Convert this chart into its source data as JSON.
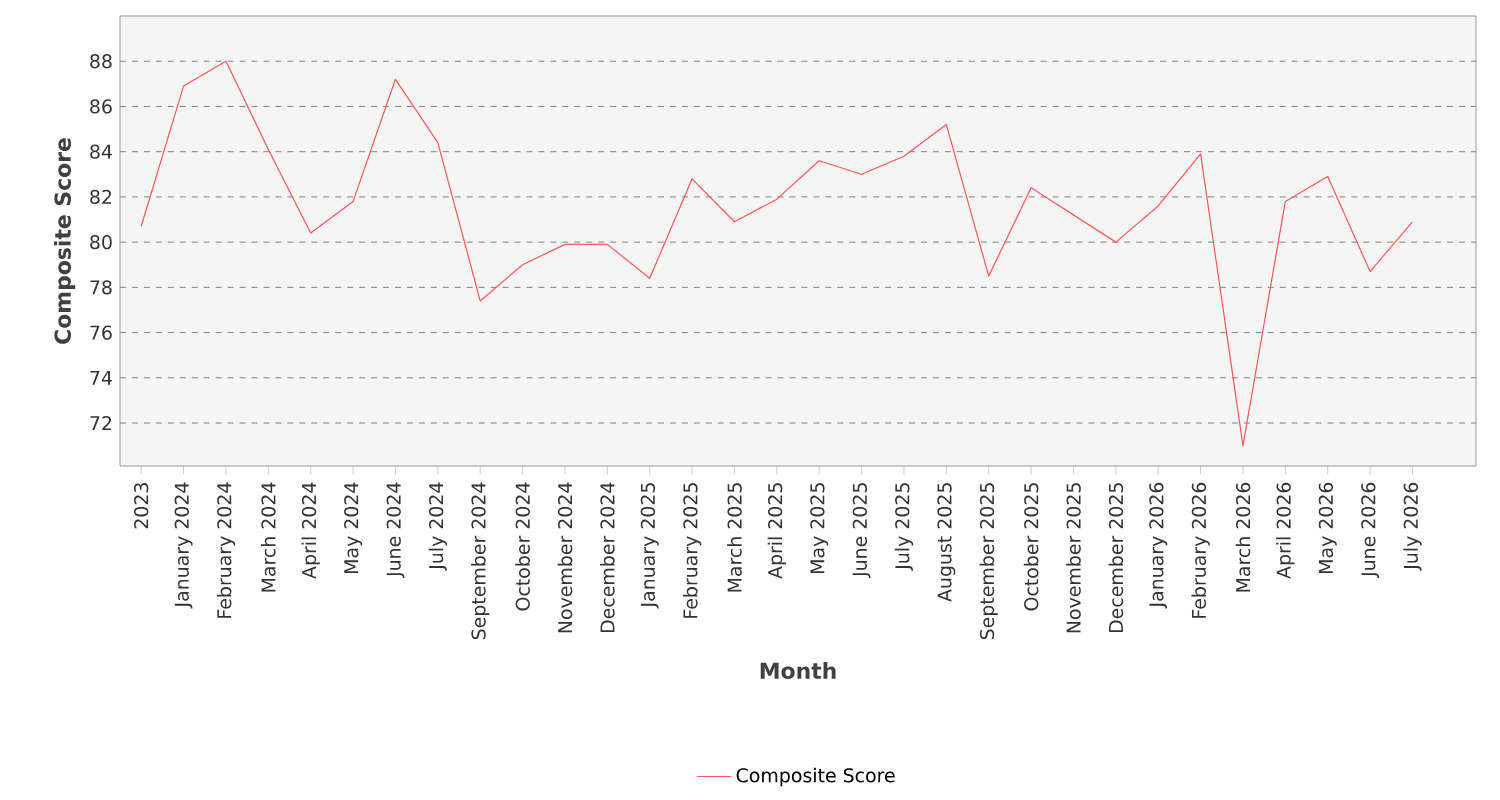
{
  "chart_data": {
    "type": "line",
    "xlabel": "Month",
    "ylabel": "Composite Score",
    "categories": [
      "2023",
      "January 2024",
      "February 2024",
      "March 2024",
      "April 2024",
      "May 2024",
      "June 2024",
      "July 2024",
      "September 2024",
      "October 2024",
      "November 2024",
      "December 2024",
      "January 2025",
      "February 2025",
      "March 2025",
      "April 2025",
      "May 2025",
      "June 2025",
      "July 2025",
      "August 2025",
      "September 2025",
      "October 2025",
      "November 2025",
      "December 2025",
      "January 2026",
      "February 2026",
      "March 2026",
      "April 2026",
      "May 2026",
      "June 2026",
      "July 2026"
    ],
    "series": [
      {
        "name": "Composite Score",
        "color": "#ff5555",
        "values": [
          80.7,
          86.9,
          88.0,
          84.1,
          80.4,
          81.8,
          87.2,
          84.4,
          77.4,
          79.0,
          79.9,
          79.9,
          78.4,
          82.8,
          80.9,
          81.9,
          83.6,
          83.0,
          83.8,
          85.2,
          78.5,
          82.4,
          81.2,
          80.0,
          81.6,
          83.9,
          71.0,
          81.8,
          82.9,
          78.7,
          80.9
        ]
      }
    ],
    "ylim": [
      70.1,
      90.0
    ],
    "yticks": [
      72,
      74,
      76,
      78,
      80,
      82,
      84,
      86,
      88
    ],
    "grid": "y",
    "legend": "bottom",
    "marker": "none",
    "line_style": "solid"
  }
}
